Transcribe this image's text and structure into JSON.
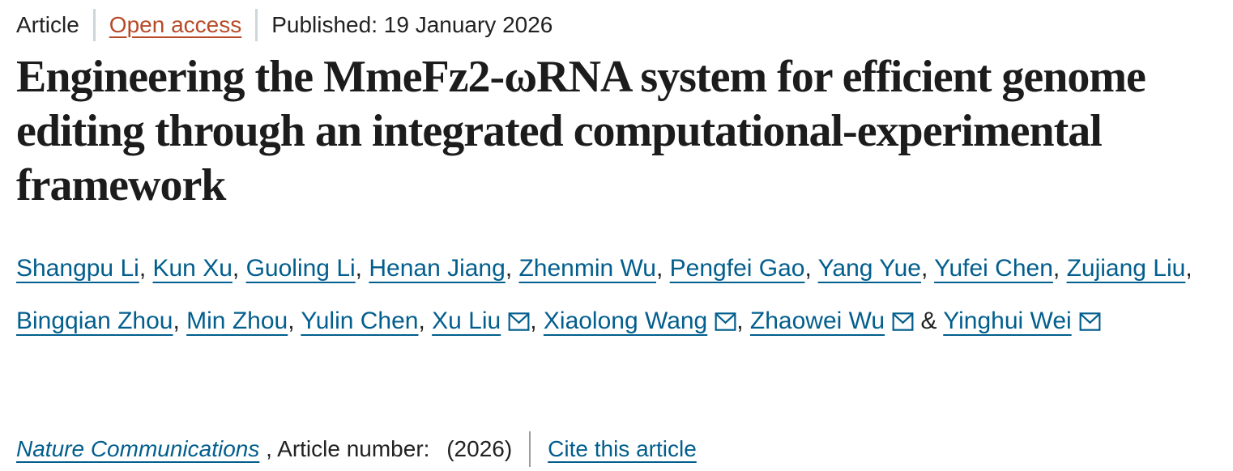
{
  "meta_bar": {
    "article_type": "Article",
    "open_access_label": "Open access",
    "published_label": "Published:",
    "published_date": "19 January 2026"
  },
  "title": "Engineering the MmeFz2-ωRNA system for efficient genome editing through an integrated computational-experimental framework",
  "authors": {
    "separator": ", ",
    "last_separator": " & ",
    "email_icon_name": "envelope-icon",
    "list": [
      {
        "name": "Shangpu Li",
        "email_icon": false
      },
      {
        "name": "Kun Xu",
        "email_icon": false
      },
      {
        "name": "Guoling Li",
        "email_icon": false
      },
      {
        "name": "Henan Jiang",
        "email_icon": false
      },
      {
        "name": "Zhenmin Wu",
        "email_icon": false
      },
      {
        "name": "Pengfei Gao",
        "email_icon": false
      },
      {
        "name": "Yang Yue",
        "email_icon": false
      },
      {
        "name": "Yufei Chen",
        "email_icon": false
      },
      {
        "name": "Zujiang Liu",
        "email_icon": false
      },
      {
        "name": "Bingqian Zhou",
        "email_icon": false
      },
      {
        "name": "Min Zhou",
        "email_icon": false
      },
      {
        "name": "Yulin Chen",
        "email_icon": false
      },
      {
        "name": "Xu Liu",
        "email_icon": true
      },
      {
        "name": "Xiaolong Wang",
        "email_icon": true
      },
      {
        "name": "Zhaowei Wu",
        "email_icon": true
      },
      {
        "name": "Yinghui Wei",
        "email_icon": true
      }
    ]
  },
  "journal_bar": {
    "journal_name": "Nature Communications",
    "article_number_label": " , Article number: ",
    "article_number_value": "(2026)",
    "cite_link_label": "Cite this article"
  },
  "colors": {
    "link_blue": "#025e8d",
    "open_access_red": "#b74b28",
    "text_dark": "#222222",
    "divider_light": "#ccd7d9",
    "divider_gray": "#9b9b9b"
  }
}
